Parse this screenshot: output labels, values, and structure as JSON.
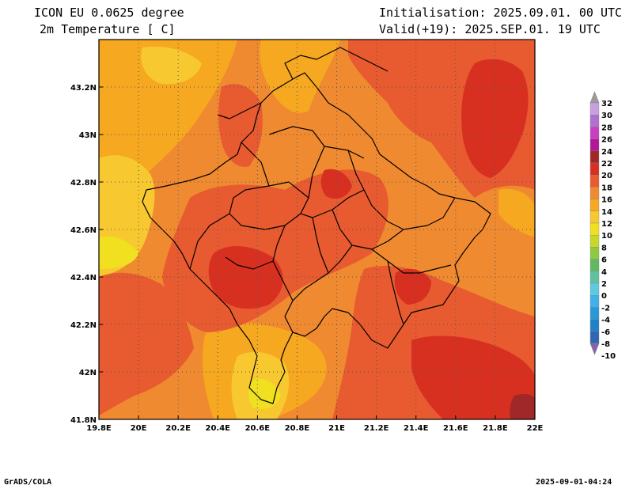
{
  "header": {
    "model": "ICON EU 0.0625 degree",
    "variable": "2m Temperature [ C]",
    "init": "Initialisation: 2025.09.01. 00 UTC",
    "valid": "Valid(+19): 2025.SEP.01. 19 UTC"
  },
  "footer": {
    "software": "GrADS/COLA",
    "timestamp": "2025-09-01-04:24"
  },
  "axes": {
    "lon_labels": [
      "19.8E",
      "20E",
      "20.2E",
      "20.4E",
      "20.6E",
      "20.8E",
      "21E",
      "21.2E",
      "21.4E",
      "21.6E",
      "21.8E",
      "22E"
    ],
    "lat_labels": [
      "43.2N",
      "43N",
      "42.8N",
      "42.6N",
      "42.4N",
      "42.2N",
      "42N",
      "41.8N"
    ]
  },
  "colorbar": {
    "labels": [
      "32",
      "30",
      "28",
      "26",
      "24",
      "22",
      "20",
      "18",
      "16",
      "14",
      "12",
      "10",
      "8",
      "6",
      "4",
      "2",
      "0",
      "-2",
      "-4",
      "-6",
      "-8",
      "-10"
    ],
    "colors": [
      "#9b9b9b",
      "#c8a0e0",
      "#b070d0",
      "#c840c0",
      "#b01898",
      "#a02828",
      "#d83020",
      "#e85a30",
      "#f08a30",
      "#f5a820",
      "#f8c830",
      "#f0e020",
      "#c8d828",
      "#90c840",
      "#60b860",
      "#60c0a0",
      "#60c8e0",
      "#40b0e8",
      "#2898d8",
      "#2080c8",
      "#3068b0",
      "#8860b0"
    ]
  },
  "legend_colors": {
    "t10": "#f0e020",
    "t12": "#f8c830",
    "t14": "#f5a820",
    "t16": "#f08a30",
    "t18": "#e85a30",
    "t20": "#d83020",
    "t22": "#a02828"
  }
}
